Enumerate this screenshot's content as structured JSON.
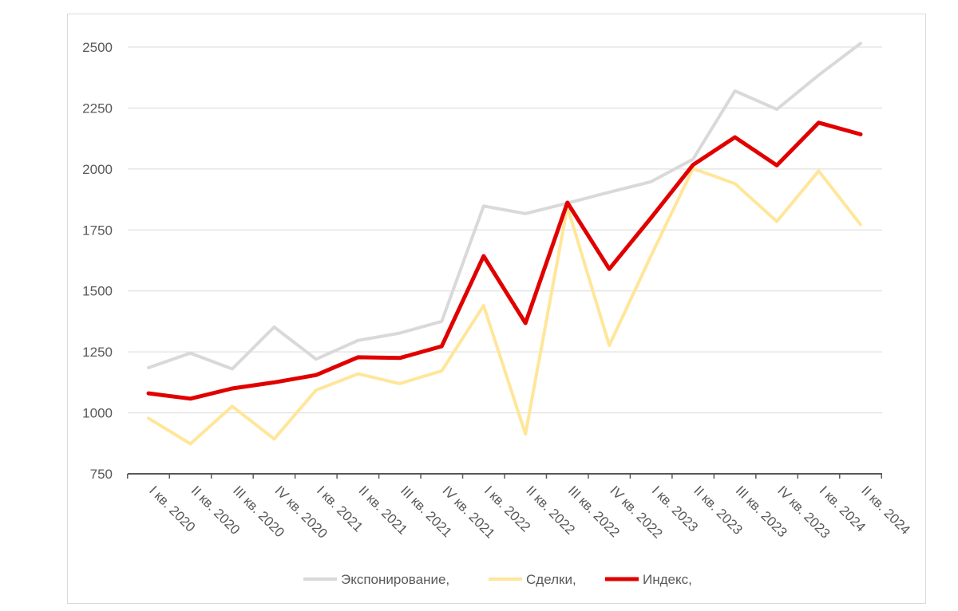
{
  "chart_data": {
    "type": "line",
    "title": "",
    "xlabel": "",
    "ylabel": "",
    "categories": [
      "I кв. 2020",
      "II кв. 2020",
      "III кв. 2020",
      "IV кв. 2020",
      "I кв. 2021",
      "II кв. 2021",
      "III кв. 2021",
      "IV кв. 2021",
      "I кв. 2022",
      "II кв. 2022",
      "III кв. 2022",
      "IV кв. 2022",
      "I кв. 2023",
      "II кв. 2023",
      "III кв. 2023",
      "IV кв. 2023",
      "I кв. 2024",
      "II кв. 2024"
    ],
    "ylim": [
      750,
      2500
    ],
    "yticks": [
      750,
      1000,
      1250,
      1500,
      1750,
      2000,
      2250,
      2500
    ],
    "grid": true,
    "legend_position": "bottom",
    "series": [
      {
        "name": "Экспонирование,",
        "color": "#d9d9d9",
        "width": 4,
        "values": [
          1185,
          1245,
          1180,
          1352,
          1220,
          1297,
          1327,
          1375,
          1848,
          1817,
          1860,
          1905,
          1948,
          2040,
          2320,
          2245,
          2385,
          2515
        ]
      },
      {
        "name": "Сделки,",
        "color": "#ffe699",
        "width": 4,
        "values": [
          978,
          873,
          1027,
          893,
          1093,
          1160,
          1120,
          1172,
          1440,
          913,
          1845,
          1277,
          1645,
          2002,
          1940,
          1785,
          1992,
          1772
        ]
      },
      {
        "name": "Индекс,",
        "color": "#e00000",
        "width": 5,
        "values": [
          1080,
          1058,
          1100,
          1125,
          1155,
          1228,
          1225,
          1273,
          1643,
          1368,
          1862,
          1590,
          1800,
          2017,
          2130,
          2015,
          2190,
          2142
        ]
      }
    ]
  }
}
